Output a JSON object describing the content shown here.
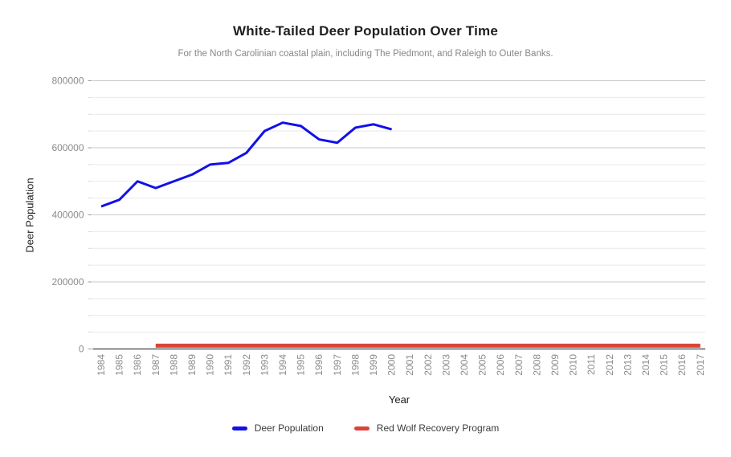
{
  "title": "White-Tailed Deer Population Over Time",
  "subtitle": "For the North Carolinian coastal plain, including The Piedmont, and Raleigh to Outer Banks.",
  "x_axis_title": "Year",
  "y_axis_title": "Deer Population",
  "legend": [
    {
      "label": "Deer Population",
      "color": "#1111e8"
    },
    {
      "label": "Red Wolf Recovery Program",
      "color": "#db4437"
    }
  ],
  "chart_data": {
    "type": "line",
    "title": "White-Tailed Deer Population Over Time",
    "subtitle": "For the North Carolinian coastal plain, including The Piedmont, and Raleigh to Outer Banks.",
    "xlabel": "Year",
    "ylabel": "Deer Population",
    "grid": true,
    "legend_position": "bottom",
    "ylim": [
      0,
      800000
    ],
    "y_major_ticks": [
      0,
      200000,
      400000,
      600000,
      800000
    ],
    "y_minor_step": 50000,
    "x_ticks": [
      1984,
      1985,
      1986,
      1987,
      1988,
      1989,
      1990,
      1991,
      1992,
      1993,
      1994,
      1995,
      1996,
      1997,
      1998,
      1999,
      2000,
      2001,
      2002,
      2003,
      2004,
      2005,
      2006,
      2007,
      2008,
      2009,
      2010,
      2011,
      2012,
      2013,
      2014,
      2015,
      2016,
      2017
    ],
    "series": [
      {
        "name": "Deer Population",
        "color": "#1111e8",
        "width": 3,
        "x": [
          1984,
          1985,
          1986,
          1987,
          1988,
          1989,
          1990,
          1991,
          1992,
          1993,
          1994,
          1995,
          1996,
          1997,
          1998,
          1999,
          2000
        ],
        "values": [
          425000,
          445000,
          500000,
          480000,
          500000,
          520000,
          550000,
          555000,
          585000,
          650000,
          675000,
          665000,
          625000,
          615000,
          660000,
          670000,
          655000
        ]
      },
      {
        "name": "Red Wolf Recovery Program",
        "color": "#db4437",
        "width": 5,
        "x": [
          1987,
          1988,
          1989,
          1990,
          1991,
          1992,
          1993,
          1994,
          1995,
          1996,
          1997,
          1998,
          1999,
          2000,
          2001,
          2002,
          2003,
          2004,
          2005,
          2006,
          2007,
          2008,
          2009,
          2010,
          2011,
          2012,
          2013,
          2014,
          2015,
          2016,
          2017
        ],
        "values": [
          10000,
          10000,
          10000,
          10000,
          10000,
          10000,
          10000,
          10000,
          10000,
          10000,
          10000,
          10000,
          10000,
          10000,
          10000,
          10000,
          10000,
          10000,
          10000,
          10000,
          10000,
          10000,
          10000,
          10000,
          10000,
          10000,
          10000,
          10000,
          10000,
          10000,
          10000
        ]
      }
    ]
  }
}
